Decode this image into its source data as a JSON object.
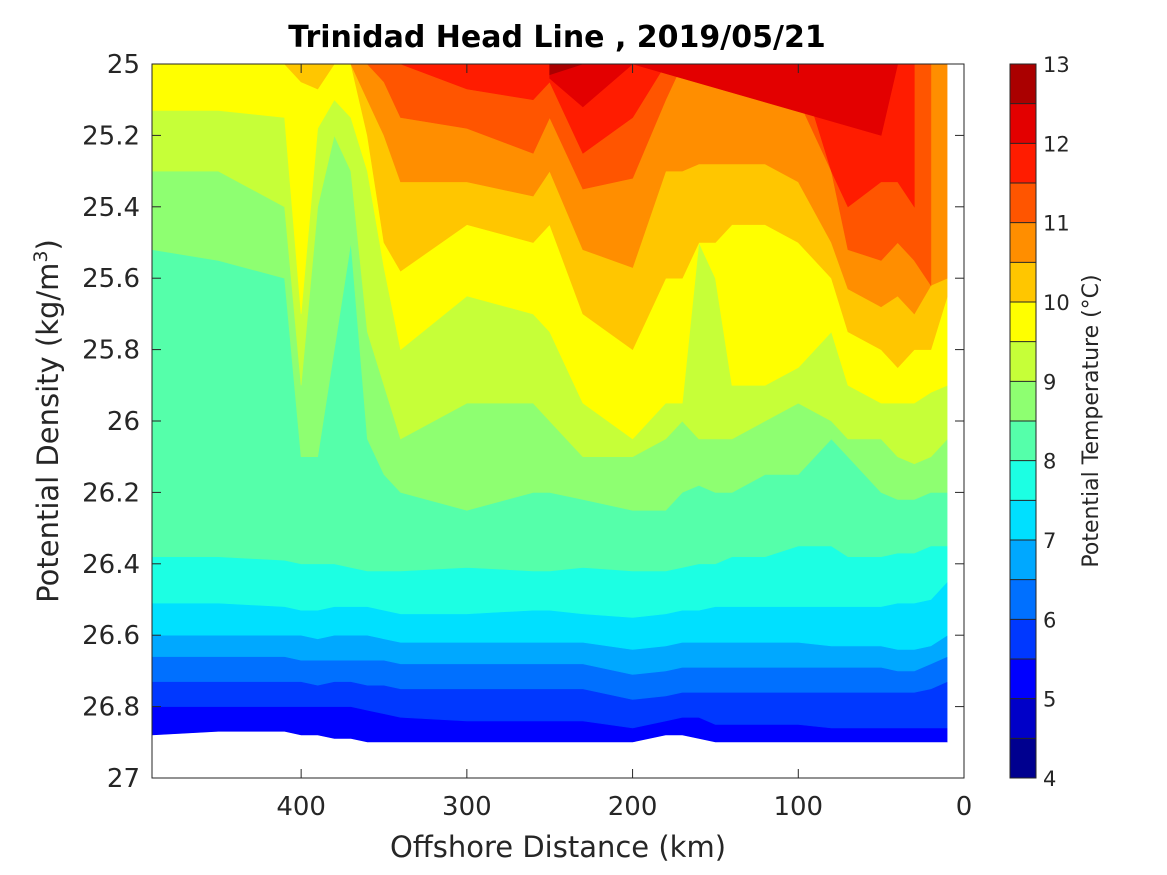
{
  "chart_data": {
    "type": "heatmap",
    "subtype": "filled-contour",
    "title": "Trinidad Head Line , 2019/05/21",
    "xlabel": "Offshore Distance (km)",
    "ylabel": "Potential Density (kg/m",
    "ylabel_superscript": "3",
    "ylabel_suffix": ")",
    "xlim": [
      490,
      0
    ],
    "x_reversed": true,
    "ylim": [
      25,
      27
    ],
    "y_reversed": true,
    "x_ticks": [
      "400",
      "300",
      "200",
      "100",
      "0"
    ],
    "y_ticks": [
      "25",
      "25.2",
      "25.4",
      "25.6",
      "25.8",
      "26",
      "26.2",
      "26.4",
      "26.6",
      "26.8",
      "27"
    ],
    "colorbar": {
      "label": "Potential Temperature (°C)",
      "range": [
        4,
        13
      ],
      "levels": [
        4,
        4.5,
        5,
        5.5,
        6,
        6.5,
        7,
        7.5,
        8,
        8.5,
        9,
        9.5,
        10,
        10.5,
        11,
        11.5,
        12,
        12.5,
        13
      ],
      "tick_labels": [
        "4",
        "5",
        "6",
        "7",
        "8",
        "9",
        "10",
        "11",
        "12",
        "13"
      ],
      "colors": [
        "#00008f",
        "#0000c8",
        "#0000ff",
        "#0038ff",
        "#0070ff",
        "#00a8ff",
        "#00e0ff",
        "#1cffe3",
        "#55ffaa",
        "#8eff71",
        "#c6ff38",
        "#ffff00",
        "#ffc600",
        "#ff8e00",
        "#ff5500",
        "#ff1c00",
        "#e30000",
        "#aa0000"
      ]
    },
    "isopycnal_depth_profiles": {
      "x_km": [
        490,
        450,
        410,
        400,
        390,
        380,
        370,
        360,
        350,
        340,
        300,
        260,
        250,
        230,
        200,
        180,
        170,
        160,
        150,
        140,
        120,
        100,
        80,
        70,
        50,
        40,
        30,
        20,
        10
      ],
      "contours": [
        {
          "temp": 12.5,
          "y": [
            null,
            null,
            null,
            null,
            null,
            null,
            null,
            null,
            null,
            null,
            null,
            null,
            25.03,
            25.0,
            null,
            null,
            null,
            null,
            null,
            null,
            null,
            null,
            null,
            null,
            null,
            null,
            null,
            null,
            null
          ]
        },
        {
          "temp": 12,
          "y": [
            null,
            null,
            null,
            null,
            null,
            null,
            null,
            null,
            null,
            null,
            null,
            null,
            25.04,
            25.12,
            25.0,
            null,
            null,
            null,
            null,
            null,
            null,
            null,
            null,
            null,
            25.2,
            25.0,
            null,
            null,
            null
          ]
        },
        {
          "temp": 11.5,
          "y": [
            null,
            null,
            null,
            null,
            null,
            null,
            null,
            null,
            25.0,
            25.0,
            25.07,
            25.1,
            25.05,
            25.25,
            25.15,
            25.0,
            null,
            null,
            null,
            null,
            null,
            25.0,
            25.3,
            25.4,
            25.33,
            25.33,
            25.4,
            null,
            null
          ]
        },
        {
          "temp": 11,
          "y": [
            null,
            null,
            null,
            null,
            null,
            null,
            null,
            25.0,
            25.05,
            25.15,
            25.18,
            25.25,
            25.15,
            25.35,
            25.32,
            25.1,
            25.0,
            null,
            null,
            null,
            null,
            25.1,
            25.3,
            25.52,
            25.55,
            25.5,
            25.55,
            25.62,
            null
          ]
        },
        {
          "temp": 10.5,
          "y": [
            null,
            null,
            null,
            null,
            null,
            null,
            25.0,
            25.1,
            25.2,
            25.33,
            25.33,
            25.37,
            25.3,
            25.52,
            25.57,
            25.3,
            25.3,
            25.28,
            25.28,
            25.28,
            25.28,
            25.33,
            25.5,
            25.63,
            25.68,
            25.65,
            25.7,
            25.62,
            25.6
          ]
        },
        {
          "temp": 10,
          "y": [
            25.0,
            25.0,
            25.0,
            25.05,
            25.07,
            25.0,
            25.0,
            25.2,
            25.5,
            25.58,
            25.45,
            25.5,
            25.45,
            25.7,
            25.8,
            25.6,
            25.6,
            25.5,
            25.5,
            25.45,
            25.45,
            25.5,
            25.6,
            25.75,
            25.8,
            25.85,
            25.8,
            25.8,
            25.65
          ]
        },
        {
          "temp": 9.5,
          "y": [
            25.13,
            25.13,
            25.15,
            25.7,
            25.18,
            25.1,
            25.15,
            25.3,
            25.57,
            25.8,
            25.65,
            25.7,
            25.75,
            25.95,
            26.05,
            25.95,
            25.95,
            25.5,
            25.6,
            25.9,
            25.9,
            25.85,
            25.75,
            25.9,
            25.95,
            25.95,
            25.95,
            25.92,
            25.9
          ]
        },
        {
          "temp": 9,
          "y": [
            25.3,
            25.3,
            25.4,
            25.9,
            25.4,
            25.2,
            25.3,
            25.75,
            25.9,
            26.05,
            25.95,
            25.95,
            26.0,
            26.1,
            26.1,
            26.05,
            26.0,
            26.05,
            26.05,
            26.05,
            26.0,
            25.95,
            26.0,
            26.05,
            26.05,
            26.1,
            26.12,
            26.1,
            26.05
          ]
        },
        {
          "temp": 8.5,
          "y": [
            25.52,
            25.55,
            25.6,
            26.1,
            26.1,
            25.8,
            25.5,
            26.05,
            26.15,
            26.2,
            26.25,
            26.2,
            26.2,
            26.22,
            26.25,
            26.25,
            26.2,
            26.18,
            26.2,
            26.2,
            26.15,
            26.15,
            26.05,
            26.1,
            26.2,
            26.22,
            26.22,
            26.2,
            26.2
          ]
        },
        {
          "temp": 8,
          "y": [
            26.38,
            26.38,
            26.39,
            26.4,
            26.4,
            26.4,
            26.41,
            26.42,
            26.42,
            26.42,
            26.41,
            26.42,
            26.42,
            26.41,
            26.42,
            26.42,
            26.41,
            26.4,
            26.4,
            26.38,
            26.38,
            26.35,
            26.35,
            26.38,
            26.38,
            26.37,
            26.37,
            26.35,
            26.35
          ]
        },
        {
          "temp": 7.5,
          "y": [
            26.51,
            26.51,
            26.52,
            26.53,
            26.53,
            26.52,
            26.52,
            26.52,
            26.53,
            26.54,
            26.54,
            26.53,
            26.53,
            26.54,
            26.55,
            26.54,
            26.53,
            26.53,
            26.52,
            26.52,
            26.52,
            26.52,
            26.52,
            26.52,
            26.52,
            26.51,
            26.51,
            26.5,
            26.45
          ]
        },
        {
          "temp": 7,
          "y": [
            26.6,
            26.6,
            26.6,
            26.6,
            26.61,
            26.6,
            26.6,
            26.6,
            26.61,
            26.62,
            26.62,
            26.62,
            26.62,
            26.62,
            26.64,
            26.63,
            26.62,
            26.62,
            26.62,
            26.62,
            26.62,
            26.62,
            26.63,
            26.63,
            26.63,
            26.64,
            26.64,
            26.63,
            26.6
          ]
        },
        {
          "temp": 6.5,
          "y": [
            26.66,
            26.66,
            26.66,
            26.67,
            26.67,
            26.67,
            26.67,
            26.67,
            26.67,
            26.68,
            26.68,
            26.68,
            26.68,
            26.68,
            26.71,
            26.7,
            26.69,
            26.69,
            26.69,
            26.69,
            26.69,
            26.69,
            26.69,
            26.69,
            26.69,
            26.7,
            26.7,
            26.68,
            26.66
          ]
        },
        {
          "temp": 6,
          "y": [
            26.73,
            26.73,
            26.73,
            26.73,
            26.74,
            26.73,
            26.73,
            26.74,
            26.74,
            26.75,
            26.75,
            26.75,
            26.75,
            26.75,
            26.78,
            26.77,
            26.76,
            26.76,
            26.76,
            26.76,
            26.76,
            26.76,
            26.76,
            26.76,
            26.76,
            26.76,
            26.76,
            26.75,
            26.73
          ]
        },
        {
          "temp": 5.5,
          "y": [
            26.8,
            26.8,
            26.8,
            26.8,
            26.8,
            26.8,
            26.8,
            26.81,
            26.82,
            26.83,
            26.84,
            26.84,
            26.84,
            26.84,
            26.86,
            26.84,
            26.83,
            26.83,
            26.85,
            26.85,
            26.85,
            26.85,
            26.86,
            26.86,
            26.86,
            26.86,
            26.86,
            26.86,
            26.86
          ]
        },
        {
          "temp": 5,
          "y": [
            26.88,
            26.87,
            26.87,
            26.88,
            26.88,
            26.89,
            26.89,
            26.9,
            26.9,
            26.9,
            26.9,
            26.9,
            26.9,
            26.9,
            26.9,
            26.88,
            26.88,
            26.89,
            26.9,
            26.9,
            26.9,
            26.9,
            26.9,
            26.9,
            26.9,
            26.9,
            26.9,
            26.9,
            26.9
          ]
        }
      ]
    }
  }
}
